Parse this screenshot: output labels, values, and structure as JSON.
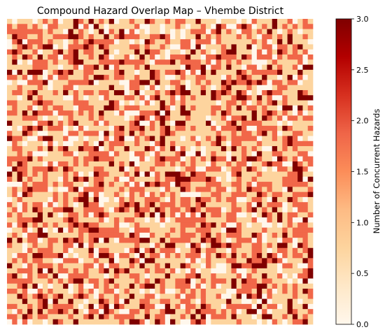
{
  "chart_data": {
    "type": "heatmap",
    "title": "Compound Hazard Overlap Map – Vhembe District",
    "xlabel": "",
    "ylabel": "",
    "grid": false,
    "axes_visible": false,
    "rows": 60,
    "cols": 60,
    "value_levels": [
      0,
      1,
      2,
      3
    ],
    "level_fractions": [
      0.14,
      0.4,
      0.33,
      0.13
    ],
    "values_note_rule": "grid of integer hazard counts 0–3 per cell",
    "colormap": "OrRd",
    "colorbar": {
      "label": "Number of Concurrent Hazards",
      "min": 0,
      "max": 3,
      "ticks": [
        0,
        0.5,
        1,
        1.5,
        2,
        2.5,
        3
      ],
      "tick_labels": [
        "0.0",
        "0.5",
        "1.0",
        "1.5",
        "2.0",
        "2.5",
        "3.0"
      ],
      "placement": "right"
    },
    "colors": [
      "#fff7ec",
      "#fdd49e",
      "#f16749",
      "#7f0000"
    ],
    "colorbar_stops": [
      "#fff7ec",
      "#fee8c8",
      "#fdd49e",
      "#fdbb84",
      "#fc8d59",
      "#ef6548",
      "#d7301f",
      "#b30000",
      "#7f0000"
    ]
  }
}
